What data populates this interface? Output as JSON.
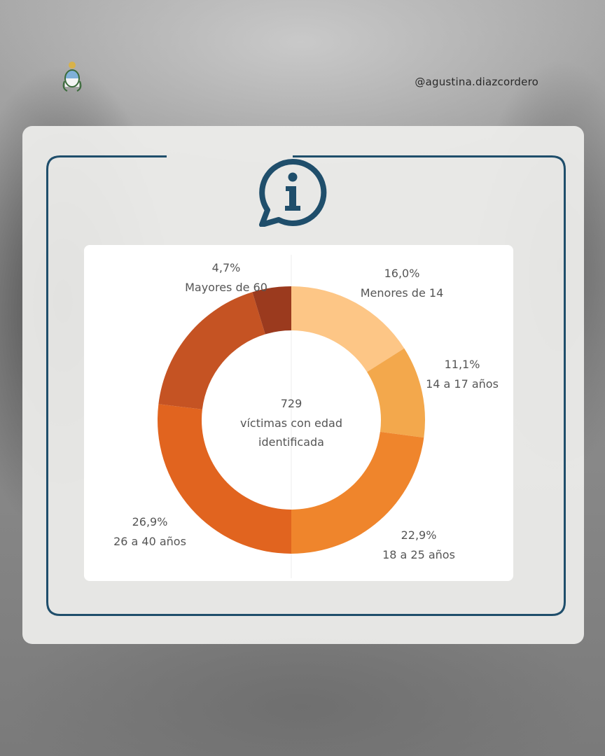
{
  "header": {
    "handle": "@agustina.diazcordero"
  },
  "icons": {
    "emblem": "coat-of-arms-icon",
    "info": "info-speech-bubble-icon"
  },
  "colors": {
    "frame": "#1f4e6b",
    "card": "#eeeeec"
  },
  "chart_data": {
    "type": "pie",
    "subtype": "donut",
    "center_value": "729",
    "center_text": [
      "víctimas con edad",
      "identificada"
    ],
    "slices": [
      {
        "label": "Menores de 14",
        "percent_text": "16,0%",
        "value": 16.0,
        "color": "#fdc686"
      },
      {
        "label": "14 a 17 años",
        "percent_text": "11,1%",
        "value": 11.1,
        "color": "#f3a84c"
      },
      {
        "label": "18 a 25 años",
        "percent_text": "22,9%",
        "value": 22.9,
        "color": "#ef852c"
      },
      {
        "label": "26 a 40 años",
        "percent_text": "26,9%",
        "value": 26.9,
        "color": "#e1641f"
      },
      {
        "label": "",
        "percent_text": "",
        "value": 18.4,
        "color": "#c55323"
      },
      {
        "label": "Mayores de 60",
        "percent_text": "4,7%",
        "value": 4.7,
        "color": "#9b3a1e"
      }
    ]
  }
}
